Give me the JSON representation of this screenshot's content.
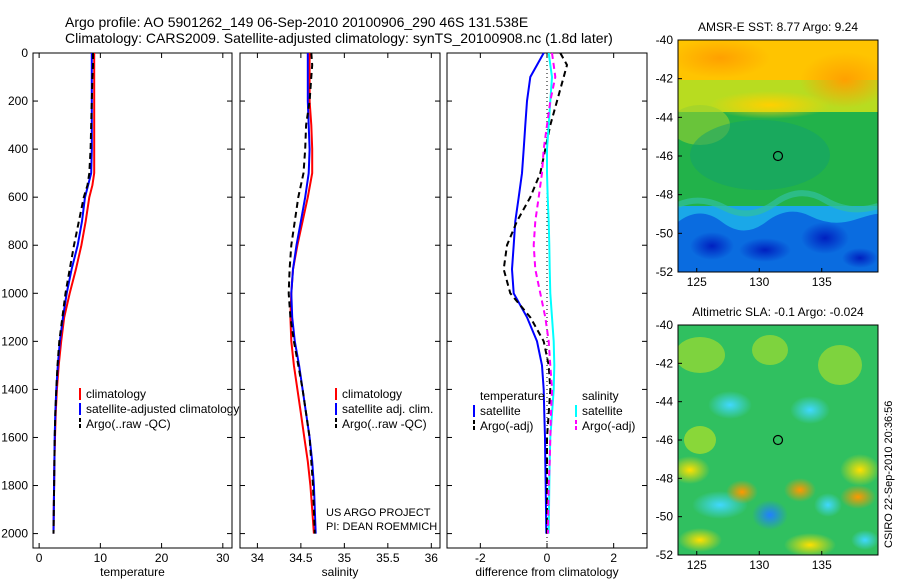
{
  "figure": {
    "title_lines": [
      "Argo profile: AO 5901262_149 06-Sep-2010 20100906_290 46S 131.538E",
      "Climatology: CARS2009. Satellite-adjusted climatology: synTS_20100908.nc (1.8d later)"
    ],
    "credit_lines": [
      "US ARGO PROJECT",
      "PI: DEAN ROEMMICH"
    ],
    "side_stamp": "CSIRO 22-Sep-2010 20:36:56"
  },
  "chart_data": [
    {
      "type": "line",
      "xlabel": "temperature",
      "xlim": [
        -1,
        31.5
      ],
      "ylim": [
        0,
        2060
      ],
      "y_inverted": true,
      "xticks": [
        0,
        10,
        20,
        30
      ],
      "yticks": [
        0,
        200,
        400,
        600,
        800,
        1000,
        1200,
        1400,
        1600,
        1800,
        2000
      ],
      "depth": [
        0,
        50,
        100,
        200,
        300,
        400,
        500,
        550,
        600,
        700,
        800,
        900,
        1000,
        1100,
        1200,
        1300,
        1400,
        1500,
        1600,
        1700,
        1800,
        1900,
        2000
      ],
      "series": [
        {
          "name": "climatology",
          "color": "#ff0000",
          "dash": "",
          "values": [
            9.0,
            9.0,
            9.0,
            9.0,
            9.0,
            9.0,
            9.0,
            8.7,
            8.2,
            7.6,
            6.9,
            6.0,
            5.0,
            4.1,
            3.6,
            3.2,
            2.9,
            2.7,
            2.6,
            2.5,
            2.45,
            2.4,
            2.35
          ]
        },
        {
          "name": "satellite-adjusted climatology",
          "color": "#0000ff",
          "dash": "",
          "values": [
            8.6,
            8.6,
            8.6,
            8.6,
            8.6,
            8.6,
            8.5,
            8.0,
            7.5,
            7.0,
            6.3,
            5.3,
            4.5,
            3.9,
            3.4,
            3.05,
            2.8,
            2.65,
            2.55,
            2.5,
            2.45,
            2.4,
            2.35
          ]
        },
        {
          "name": "Argo(..raw -QC)",
          "color": "#000000",
          "dash": "6,4",
          "values": [
            8.8,
            8.8,
            8.7,
            8.6,
            8.5,
            8.4,
            8.2,
            7.9,
            7.3,
            6.5,
            5.7,
            5.0,
            4.3,
            3.8,
            3.3,
            3.0,
            2.8,
            2.65,
            2.55,
            2.5,
            2.45,
            2.4,
            2.35
          ]
        }
      ]
    },
    {
      "type": "line",
      "xlabel": "salinity",
      "xlim": [
        33.8,
        36.1
      ],
      "ylim": [
        0,
        2060
      ],
      "y_inverted": true,
      "xticks": [
        34,
        34.5,
        35,
        35.5,
        36
      ],
      "yticks": [],
      "depth": [
        0,
        50,
        100,
        200,
        300,
        400,
        500,
        600,
        700,
        800,
        900,
        1000,
        1100,
        1200,
        1300,
        1400,
        1500,
        1600,
        1700,
        1800,
        1900,
        2000
      ],
      "series": [
        {
          "name": "climatology",
          "color": "#ff0000",
          "dash": "",
          "values": [
            34.6,
            34.6,
            34.6,
            34.6,
            34.62,
            34.63,
            34.63,
            34.58,
            34.52,
            34.46,
            34.41,
            34.39,
            34.38,
            34.39,
            34.42,
            34.46,
            34.5,
            34.54,
            34.58,
            34.61,
            34.63,
            34.65
          ]
        },
        {
          "name": "satellite adj. clim.",
          "color": "#0000ff",
          "dash": "",
          "values": [
            34.58,
            34.58,
            34.58,
            34.58,
            34.59,
            34.6,
            34.59,
            34.55,
            34.5,
            34.45,
            34.41,
            34.39,
            34.4,
            34.43,
            34.48,
            34.52,
            34.56,
            34.6,
            34.63,
            34.65,
            34.66,
            34.67
          ]
        },
        {
          "name": "Argo(..raw -QC)",
          "color": "#000000",
          "dash": "6,4",
          "values": [
            34.62,
            34.63,
            34.62,
            34.6,
            34.56,
            34.55,
            34.53,
            34.47,
            34.43,
            34.39,
            34.37,
            34.36,
            34.38,
            34.42,
            34.47,
            34.52,
            34.56,
            34.6,
            34.62,
            34.64,
            34.65,
            34.66
          ]
        }
      ]
    },
    {
      "type": "line",
      "xlabel": "difference from climatology",
      "xlim": [
        -3,
        3
      ],
      "ylim": [
        0,
        2060
      ],
      "y_inverted": true,
      "xticks": [
        -2,
        0,
        2
      ],
      "yticks": [],
      "zero_reference": true,
      "depth": [
        0,
        50,
        100,
        200,
        300,
        400,
        500,
        600,
        700,
        800,
        900,
        1000,
        1100,
        1200,
        1300,
        1400,
        1500,
        1600,
        1700,
        1800,
        1900,
        2000
      ],
      "legend_groups": [
        "temperature",
        "salinity"
      ],
      "series": [
        {
          "name": "satellite",
          "group": "temperature",
          "color": "#0000ff",
          "dash": "",
          "values": [
            -0.1,
            -0.3,
            -0.5,
            -0.6,
            -0.65,
            -0.7,
            -0.75,
            -0.85,
            -0.95,
            -1.0,
            -1.05,
            -1.0,
            -0.6,
            -0.3,
            -0.15,
            -0.1,
            -0.08,
            -0.06,
            -0.05,
            -0.04,
            -0.03,
            -0.02
          ]
        },
        {
          "name": "Argo(-adj)",
          "group": "temperature",
          "color": "#000000",
          "dash": "6,4",
          "values": [
            0.4,
            0.6,
            0.5,
            0.3,
            0.1,
            -0.05,
            -0.2,
            -0.5,
            -0.9,
            -1.2,
            -1.3,
            -1.1,
            -0.5,
            -0.1,
            0.05,
            0.1,
            0.05,
            0.0,
            0.0,
            0.0,
            0.0,
            0.0
          ]
        },
        {
          "name": "satellite",
          "group": "salinity",
          "color": "#00ffff",
          "dash": "",
          "values": [
            0.05,
            0.1,
            0.15,
            0.1,
            0.05,
            0.0,
            0.0,
            0.02,
            0.05,
            0.07,
            0.08,
            0.1,
            0.15,
            0.2,
            0.22,
            0.2,
            0.15,
            0.1,
            0.08,
            0.07,
            0.06,
            0.05
          ]
        },
        {
          "name": "Argo(-adj)",
          "group": "salinity",
          "color": "#ff00ff",
          "dash": "6,4",
          "values": [
            0.15,
            0.2,
            0.25,
            0.1,
            0.0,
            -0.1,
            -0.15,
            -0.25,
            -0.35,
            -0.4,
            -0.35,
            -0.2,
            -0.05,
            0.05,
            0.1,
            0.15,
            0.12,
            0.1,
            0.08,
            0.05,
            0.04,
            0.03
          ]
        }
      ]
    },
    {
      "type": "heatmap",
      "title": "AMSR-E SST: 8.77 Argo: 9.24",
      "xlim": [
        123.5,
        139.5
      ],
      "ylim": [
        -52,
        -40
      ],
      "xticks": [
        125,
        130,
        135
      ],
      "yticks": [
        -40,
        -42,
        -44,
        -46,
        -48,
        -50,
        -52
      ],
      "marker": {
        "lon": 131.5,
        "lat": -46
      }
    },
    {
      "type": "heatmap",
      "title": "Altimetric SLA: -0.1 Argo: -0.024",
      "xlim": [
        123.5,
        139.5
      ],
      "ylim": [
        -52,
        -40
      ],
      "xticks": [
        125,
        130,
        135
      ],
      "yticks": [
        -40,
        -42,
        -44,
        -46,
        -48,
        -50,
        -52
      ],
      "marker": {
        "lon": 131.5,
        "lat": -46
      }
    }
  ]
}
